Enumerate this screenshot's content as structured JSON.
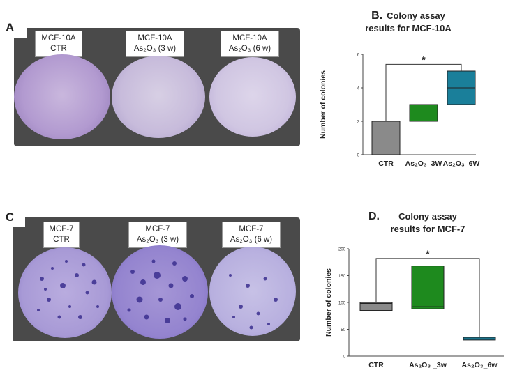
{
  "panels": {
    "a": {
      "letter": "A.",
      "plates": [
        {
          "line1": "MCF-10A",
          "line2": "CTR"
        },
        {
          "line1": "MCF-10A",
          "line2": "As₂O₃ (3 w)"
        },
        {
          "line1": "MCF-10A",
          "line2": "As₂O₃ (6 w)"
        }
      ]
    },
    "c": {
      "letter": "C.",
      "plates": [
        {
          "line1": "MCF-7",
          "line2": "CTR"
        },
        {
          "line1": "MCF-7",
          "line2": "As₂O₃ (3 w)"
        },
        {
          "line1": "MCF-7",
          "line2": "As₂O₃ (6 w)"
        }
      ]
    },
    "b": {
      "letter": "B.",
      "title_line1": "Colony assay",
      "title_line2": "results for MCF-10A"
    },
    "d": {
      "letter": "D.",
      "title_line1": "Colony assay",
      "title_line2": "results for MCF-7"
    }
  },
  "chart_data": [
    {
      "id": "B",
      "type": "box",
      "title": "Colony assay results for MCF-10A",
      "ylabel": "Number of colonies",
      "categories": [
        "CTR",
        "As₂O₃_3W",
        "As₂O₃_6W"
      ],
      "ylim": [
        0,
        6
      ],
      "yticks": [
        "0",
        "2",
        "4",
        "6"
      ],
      "boxes": [
        {
          "min": 0,
          "q1": 0,
          "median": 0,
          "q3": 2,
          "max": 2
        },
        {
          "min": 2,
          "q1": 2,
          "median": 2,
          "q3": 3,
          "max": 3
        },
        {
          "min": 3,
          "q1": 3,
          "median": 4,
          "q3": 5,
          "max": 5
        }
      ],
      "colors": [
        "#8a8a8a",
        "#1e8a1e",
        "#1a7f9a"
      ],
      "significance": {
        "from": 0,
        "to": 2,
        "y": 5.4,
        "label": "*"
      }
    },
    {
      "id": "D",
      "type": "box",
      "title": "Colony assay results for MCF-7",
      "ylabel": "Number of colonies",
      "categories": [
        "CTR",
        "As₂O₃ _3w",
        "As₂O₃_6w"
      ],
      "ylim": [
        0,
        200
      ],
      "yticks": [
        "0",
        "50",
        "100",
        "150",
        "200"
      ],
      "boxes": [
        {
          "min": 85,
          "q1": 85,
          "median": 98,
          "q3": 100,
          "max": 100
        },
        {
          "min": 88,
          "q1": 88,
          "median": 92,
          "q3": 168,
          "max": 168
        },
        {
          "min": 30,
          "q1": 30,
          "median": 32,
          "q3": 35,
          "max": 35
        }
      ],
      "colors": [
        "#8a8a8a",
        "#1e8a1e",
        "#1a7f9a"
      ],
      "significance": {
        "from": 0,
        "to": 2,
        "y": 182,
        "label": "*"
      }
    }
  ]
}
